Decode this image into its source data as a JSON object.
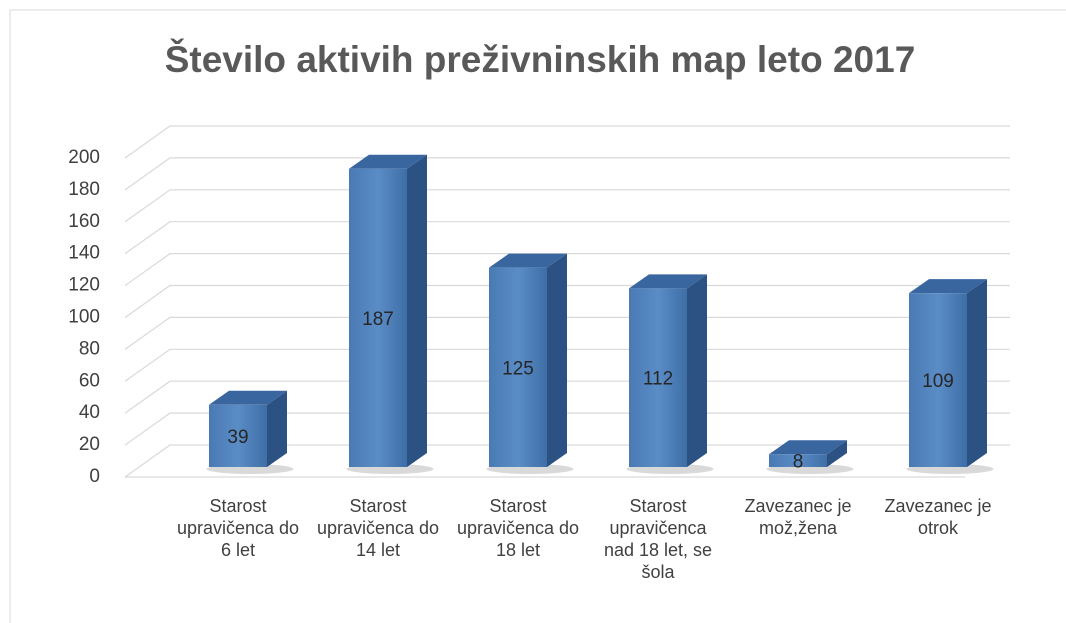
{
  "chart_data": {
    "type": "bar3d",
    "title": "Število aktivih preživninskih map leto 2017",
    "categories": [
      "Starost upravičenca do 6 let",
      "Starost upravičenca do 14 let",
      "Starost upravičenca do 18 let",
      "Starost upravičenca nad 18 let, se šola",
      "Zavezanec je mož,žena",
      "Zavezanec je otrok"
    ],
    "values": [
      39,
      187,
      125,
      112,
      8,
      109
    ],
    "color": "#4f81bd",
    "ylim": [
      0,
      200
    ],
    "yticks": [
      0,
      20,
      40,
      60,
      80,
      100,
      120,
      140,
      160,
      180,
      200
    ],
    "grid": true
  }
}
